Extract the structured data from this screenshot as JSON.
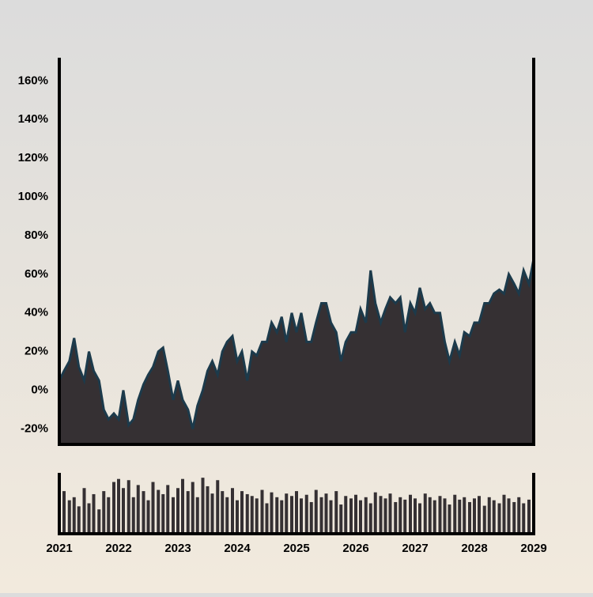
{
  "chart_data": [
    {
      "type": "area",
      "color": "#353033",
      "line_color": "#1c3a4b",
      "x": [
        2021,
        2021.08,
        2021.17,
        2021.25,
        2021.33,
        2021.42,
        2021.5,
        2021.58,
        2021.67,
        2021.75,
        2021.83,
        2021.92,
        2022,
        2022.08,
        2022.17,
        2022.25,
        2022.33,
        2022.42,
        2022.5,
        2022.58,
        2022.67,
        2022.75,
        2022.83,
        2022.92,
        2023,
        2023.08,
        2023.17,
        2023.25,
        2023.33,
        2023.42,
        2023.5,
        2023.58,
        2023.67,
        2023.75,
        2023.83,
        2023.92,
        2024,
        2024.08,
        2024.17,
        2024.25,
        2024.33,
        2024.42,
        2024.5,
        2024.58,
        2024.67,
        2024.75,
        2024.83,
        2024.92,
        2025,
        2025.08,
        2025.17,
        2025.25,
        2025.33,
        2025.42,
        2025.5,
        2025.58,
        2025.67,
        2025.75,
        2025.83,
        2025.92,
        2026,
        2026.08,
        2026.17,
        2026.25,
        2026.33,
        2026.42,
        2026.5,
        2026.58,
        2026.67,
        2026.75,
        2026.83,
        2026.92,
        2027,
        2027.08,
        2027.17,
        2027.25,
        2027.33,
        2027.42,
        2027.5,
        2027.58,
        2027.67,
        2027.75,
        2027.83,
        2027.92,
        2028,
        2028.08,
        2028.17,
        2028.25,
        2028.33,
        2028.42,
        2028.5,
        2028.58,
        2028.67,
        2028.75,
        2028.83,
        2028.92,
        2029
      ],
      "values": [
        5,
        10,
        15,
        27,
        12,
        5,
        20,
        10,
        5,
        -10,
        -15,
        -12,
        -15,
        0,
        -18,
        -15,
        -5,
        3,
        8,
        12,
        20,
        22,
        10,
        -5,
        5,
        -5,
        -10,
        -20,
        -8,
        0,
        10,
        15,
        8,
        20,
        25,
        28,
        15,
        20,
        5,
        20,
        18,
        25,
        25,
        35,
        30,
        38,
        25,
        40,
        30,
        40,
        25,
        25,
        35,
        45,
        45,
        35,
        30,
        15,
        25,
        30,
        30,
        42,
        35,
        62,
        45,
        35,
        42,
        48,
        45,
        48,
        30,
        45,
        40,
        53,
        42,
        45,
        40,
        40,
        25,
        15,
        25,
        18,
        30,
        28,
        35,
        35,
        45,
        45,
        50,
        52,
        50,
        60,
        55,
        50,
        62,
        55,
        68
      ],
      "xlim": [
        2021,
        2029
      ],
      "ylim": [
        -28,
        172
      ],
      "yticks": [
        {
          "value": -20,
          "label": "-20%"
        },
        {
          "value": 0,
          "label": "0%"
        },
        {
          "value": 20,
          "label": "20%"
        },
        {
          "value": 40,
          "label": "40%"
        },
        {
          "value": 60,
          "label": "60%"
        },
        {
          "value": 80,
          "label": "80%"
        },
        {
          "value": 100,
          "label": "100%"
        },
        {
          "value": 120,
          "label": "120%"
        },
        {
          "value": 140,
          "label": "140%"
        },
        {
          "value": 160,
          "label": "160%"
        }
      ]
    },
    {
      "type": "bar",
      "color": "#353033",
      "x": [
        2021,
        2021.08,
        2021.17,
        2021.25,
        2021.33,
        2021.42,
        2021.5,
        2021.58,
        2021.67,
        2021.75,
        2021.83,
        2021.92,
        2022,
        2022.08,
        2022.17,
        2022.25,
        2022.33,
        2022.42,
        2022.5,
        2022.58,
        2022.67,
        2022.75,
        2022.83,
        2022.92,
        2023,
        2023.08,
        2023.17,
        2023.25,
        2023.33,
        2023.42,
        2023.5,
        2023.58,
        2023.67,
        2023.75,
        2023.83,
        2023.92,
        2024,
        2024.08,
        2024.17,
        2024.25,
        2024.33,
        2024.42,
        2024.5,
        2024.58,
        2024.67,
        2024.75,
        2024.83,
        2024.92,
        2025,
        2025.08,
        2025.17,
        2025.25,
        2025.33,
        2025.42,
        2025.5,
        2025.58,
        2025.67,
        2025.75,
        2025.83,
        2025.92,
        2026,
        2026.08,
        2026.17,
        2026.25,
        2026.33,
        2026.42,
        2026.5,
        2026.58,
        2026.67,
        2026.75,
        2026.83,
        2026.92,
        2027,
        2027.08,
        2027.17,
        2027.25,
        2027.33,
        2027.42,
        2027.5,
        2027.58,
        2027.67,
        2027.75,
        2027.83,
        2027.92,
        2028,
        2028.08,
        2028.17,
        2028.25,
        2028.33,
        2028.42,
        2028.5,
        2028.58,
        2028.67,
        2028.75,
        2028.83,
        2028.92,
        2029
      ],
      "values": [
        40,
        70,
        55,
        60,
        45,
        75,
        50,
        65,
        40,
        70,
        60,
        85,
        90,
        75,
        88,
        60,
        80,
        70,
        55,
        85,
        72,
        65,
        80,
        60,
        75,
        90,
        70,
        85,
        60,
        92,
        78,
        66,
        88,
        70,
        60,
        75,
        55,
        70,
        65,
        62,
        58,
        72,
        50,
        68,
        60,
        55,
        66,
        62,
        70,
        58,
        64,
        52,
        72,
        60,
        66,
        55,
        70,
        48,
        62,
        58,
        64,
        55,
        60,
        50,
        68,
        62,
        58,
        66,
        52,
        60,
        56,
        64,
        58,
        50,
        66,
        60,
        55,
        62,
        58,
        48,
        64,
        56,
        60,
        52,
        58,
        62,
        46,
        60,
        55,
        50,
        64,
        58,
        52,
        60,
        50,
        56,
        45
      ],
      "xlim": [
        2021,
        2029
      ],
      "ylim": [
        0,
        100
      ],
      "xticks": [
        2021,
        2022,
        2023,
        2024,
        2025,
        2026,
        2027,
        2028,
        2029
      ]
    }
  ]
}
